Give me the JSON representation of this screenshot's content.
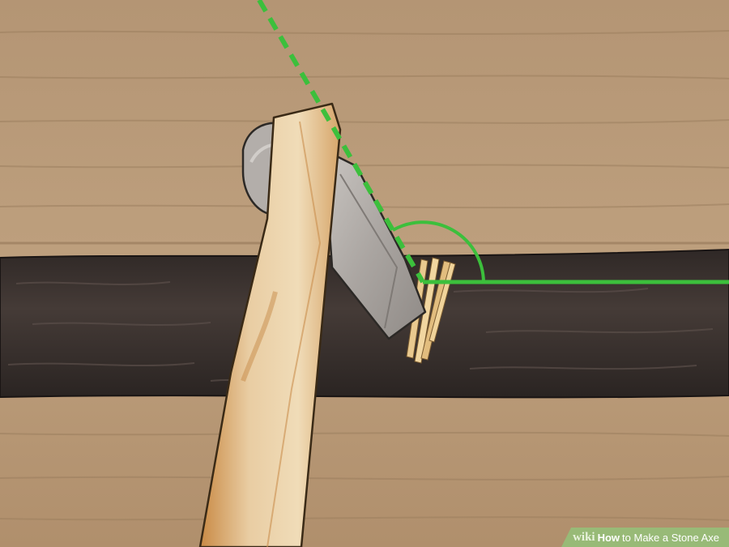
{
  "watermark": {
    "brand": "wiki",
    "title_bold": "How",
    "title_rest": "to Make a Stone Axe"
  },
  "colors": {
    "background_wood": "#b89a78",
    "log_bark": "#3a3230",
    "axe_handle": "#e7c99d",
    "stone_head": "#b9b4b0",
    "guide_line": "#3cbf3c",
    "watermark_bg": "#96be78"
  },
  "icons": [
    "wikihow-logo"
  ]
}
